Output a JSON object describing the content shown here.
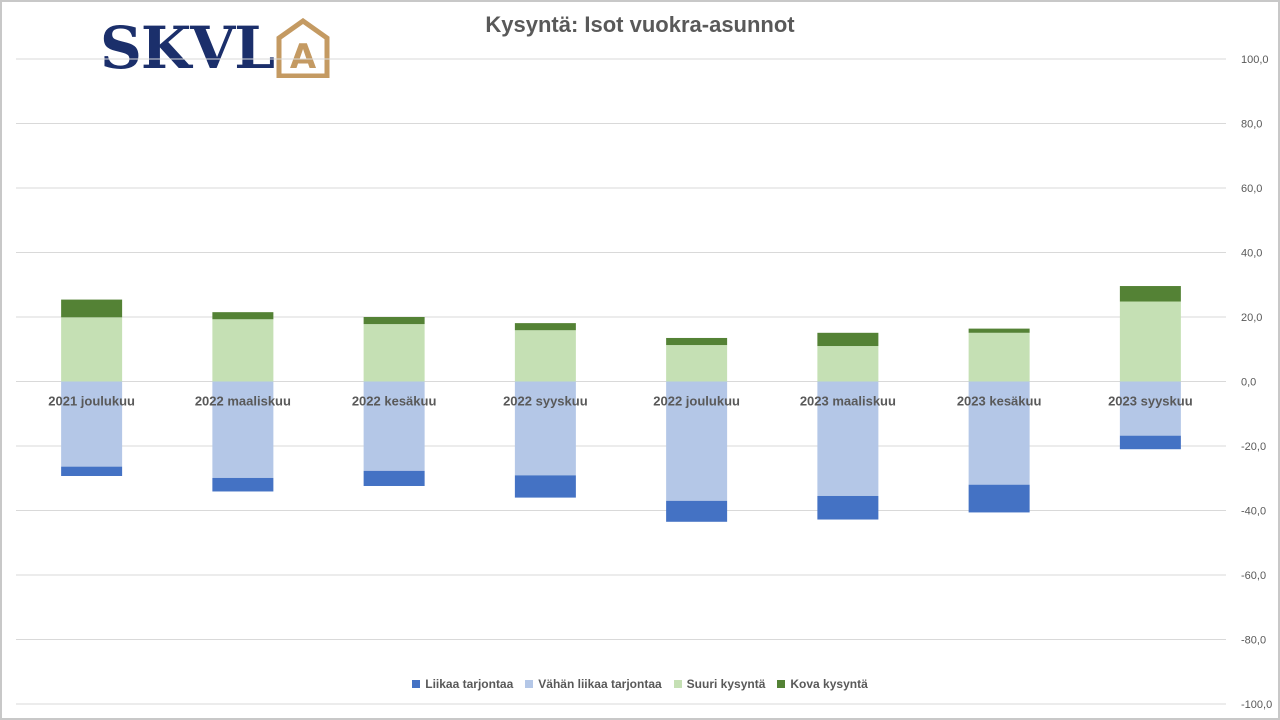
{
  "logo": {
    "text": "SKVL",
    "mark_letter": "A",
    "text_color": "#1b2f6b",
    "mark_color": "#c49a62"
  },
  "chart_data": {
    "type": "bar",
    "stacked": true,
    "title": "Kysyntä: Isot vuokra-asunnot",
    "categories": [
      "2021 joulukuu",
      "2022 maaliskuu",
      "2022 kesäkuu",
      "2022 syyskuu",
      "2022 joulukuu",
      "2023 maaliskuu",
      "2023 kesäkuu",
      "2023 syyskuu"
    ],
    "series": [
      {
        "name": "Liikaa tarjontaa",
        "color": "#4472c4",
        "values": [
          -2.9,
          -4.2,
          -4.7,
          -6.9,
          -6.5,
          -7.3,
          -8.6,
          -4.2
        ]
      },
      {
        "name": "Vähän liikaa tarjontaa",
        "color": "#b4c7e7",
        "values": [
          -26.4,
          -29.9,
          -27.7,
          -29.1,
          -37.0,
          -35.5,
          -32.0,
          -16.8
        ]
      },
      {
        "name": "Suuri kysyntä",
        "color": "#c5e0b4",
        "values": [
          19.9,
          19.3,
          17.8,
          15.9,
          11.3,
          11.0,
          15.1,
          24.8
        ]
      },
      {
        "name": "Kova kysyntä",
        "color": "#548235",
        "values": [
          5.5,
          2.2,
          2.2,
          2.2,
          2.2,
          4.1,
          1.3,
          4.8
        ]
      }
    ],
    "ylim": [
      -100,
      100
    ],
    "yticks": [
      "100,0",
      "80,0",
      "60,0",
      "40,0",
      "20,0",
      "0,0",
      "-20,0",
      "-40,0",
      "-60,0",
      "-80,0",
      "-100,0"
    ],
    "grid": true,
    "legend": "bottom",
    "axis_position": "right"
  }
}
